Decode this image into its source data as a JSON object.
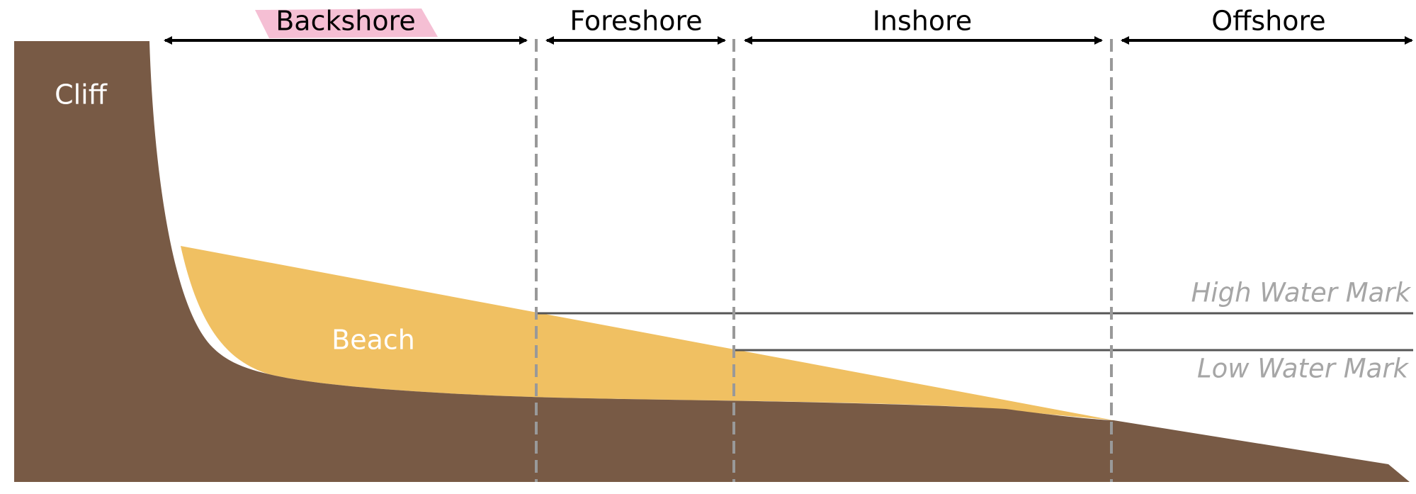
{
  "zones": {
    "backshore": "Backshore",
    "foreshore": "Foreshore",
    "inshore": "Inshore",
    "offshore": "Offshore"
  },
  "terrain": {
    "cliff": "Cliff",
    "beach": "Beach"
  },
  "water_marks": {
    "high": "High Water Mark",
    "low": "Low Water Mark"
  },
  "colors": {
    "cliff_rock": "#785a45",
    "beach_sand": "#f0c062",
    "divider": "#999999",
    "water_line": "#555555",
    "mark_text": "#a6a6a6",
    "highlight": "#f4b8cf",
    "arrow": "#000000"
  }
}
